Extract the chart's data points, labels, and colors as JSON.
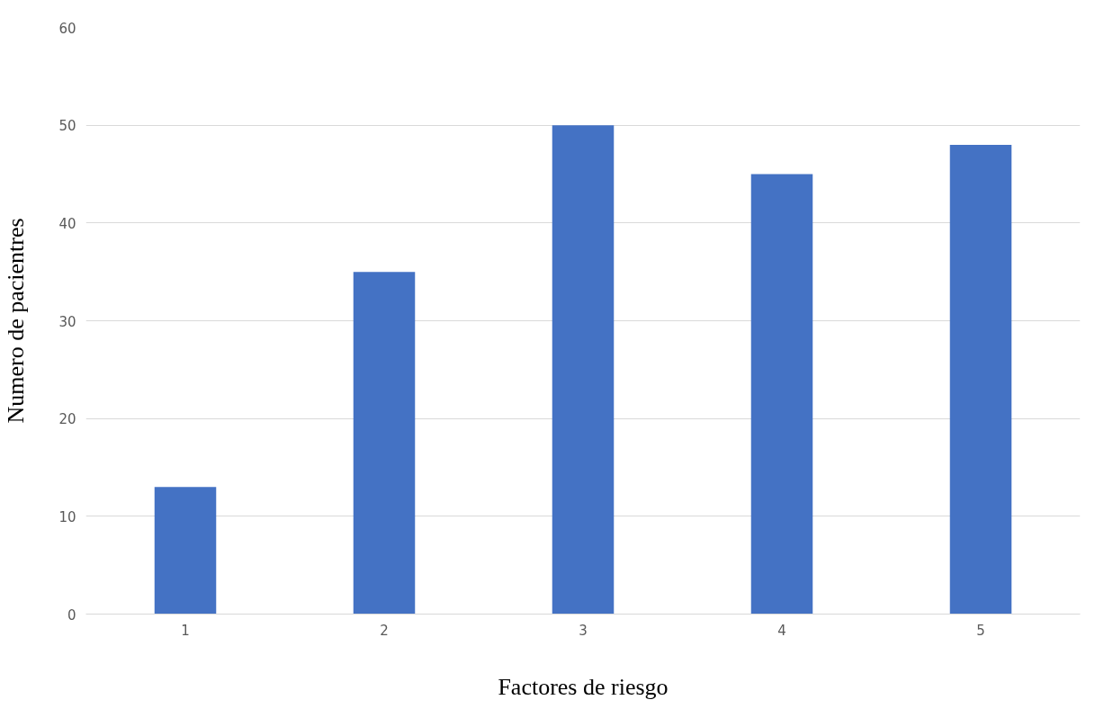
{
  "chart_data": {
    "type": "bar",
    "xlabel": "Factores de riesgo",
    "ylabel": "Numero de pacientres",
    "categories": [
      "1",
      "2",
      "3",
      "4",
      "5"
    ],
    "values": [
      13,
      35,
      50,
      45,
      48
    ],
    "color": "#4472c4",
    "ylim": [
      0,
      60
    ],
    "yticks": [
      0,
      10,
      20,
      30,
      40,
      50,
      60
    ],
    "grid": "y"
  }
}
